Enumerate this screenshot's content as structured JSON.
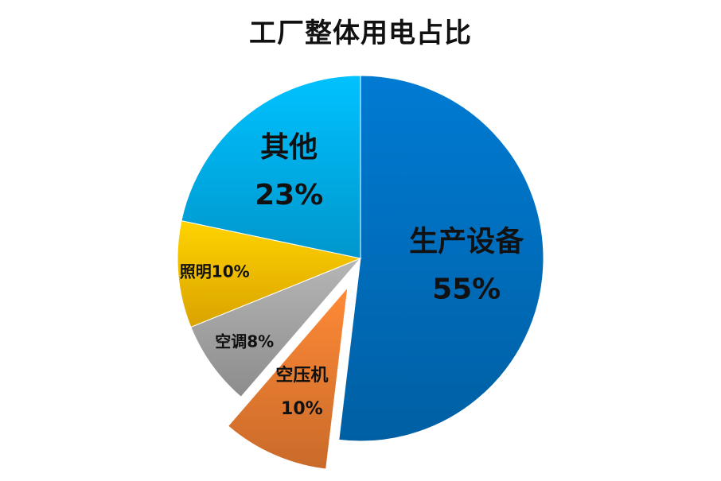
{
  "chart_data": {
    "type": "pie",
    "title": "工厂整体用电占比",
    "slices": [
      {
        "label": "生产设备",
        "value": 55,
        "value_text": "55%",
        "color": "#0070C0",
        "exploded": false
      },
      {
        "label": "空压机",
        "value": 10,
        "value_text": "10%",
        "color": "#ED7D31",
        "exploded": true
      },
      {
        "label": "空调",
        "value": 8,
        "value_text": "8%",
        "color": "#A5A5A5",
        "exploded": false
      },
      {
        "label": "照明",
        "value": 10,
        "value_text": "10%",
        "color": "#FFC000",
        "exploded": false
      },
      {
        "label": "其他",
        "value": 23,
        "value_text": "23%",
        "color": "#00B0F0",
        "exploded": false
      }
    ],
    "legend": "none",
    "grid": false
  }
}
